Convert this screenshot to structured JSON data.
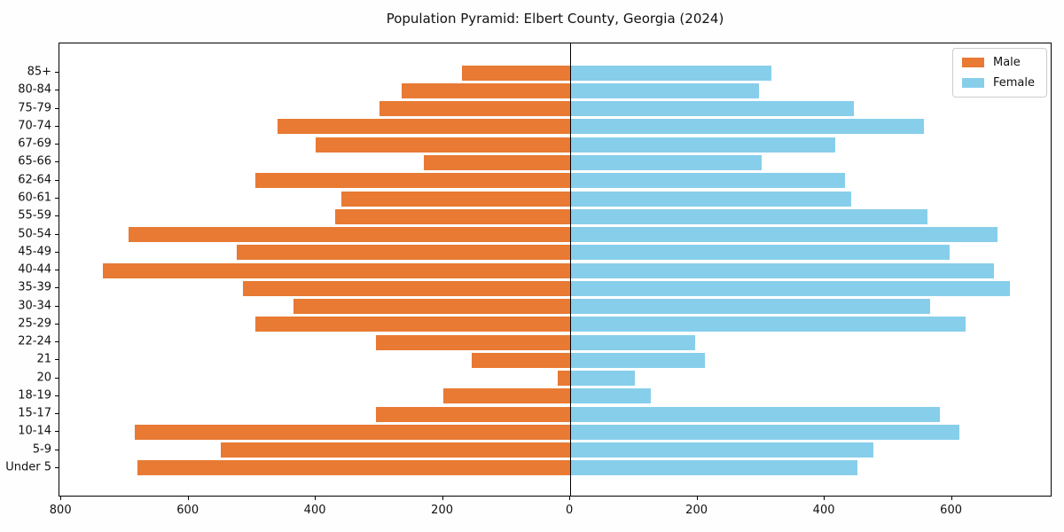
{
  "title": "Population Pyramid: Elbert County, Georgia (2024)",
  "legend": {
    "male_label": "Male",
    "female_label": "Female"
  },
  "colors": {
    "male": "#e87a33",
    "female": "#87ceeb",
    "axis": "#000000",
    "zero_line": "#000000",
    "background": "#ffffff"
  },
  "chart_data": {
    "type": "bar",
    "subtype": "population-pyramid",
    "orientation": "horizontal",
    "title": "Population Pyramid: Elbert County, Georgia (2024)",
    "xlabel": "",
    "ylabel": "",
    "grid": false,
    "legend_position": "upper right",
    "categories_top_to_bottom": [
      "85+",
      "80-84",
      "75-79",
      "70-74",
      "67-69",
      "65-66",
      "62-64",
      "60-61",
      "55-59",
      "50-54",
      "45-49",
      "40-44",
      "35-39",
      "30-34",
      "25-29",
      "22-24",
      "21",
      "20",
      "18-19",
      "15-17",
      "10-14",
      "5-9",
      "Under 5"
    ],
    "series": [
      {
        "name": "Male",
        "side": "left",
        "values": [
          170,
          265,
          300,
          460,
          400,
          230,
          495,
          360,
          370,
          695,
          525,
          735,
          515,
          435,
          495,
          305,
          155,
          20,
          200,
          305,
          685,
          550,
          680
        ]
      },
      {
        "name": "Female",
        "side": "right",
        "values": [
          315,
          295,
          445,
          555,
          415,
          300,
          430,
          440,
          560,
          670,
          595,
          665,
          690,
          565,
          620,
          195,
          210,
          100,
          125,
          580,
          610,
          475,
          450
        ]
      }
    ],
    "xlim": [
      -803,
      758
    ],
    "x_tick_values": [
      -800,
      -600,
      -400,
      -200,
      0,
      200,
      400,
      600
    ],
    "x_tick_labels": [
      "800",
      "600",
      "400",
      "200",
      "0",
      "200",
      "400",
      "600"
    ]
  }
}
